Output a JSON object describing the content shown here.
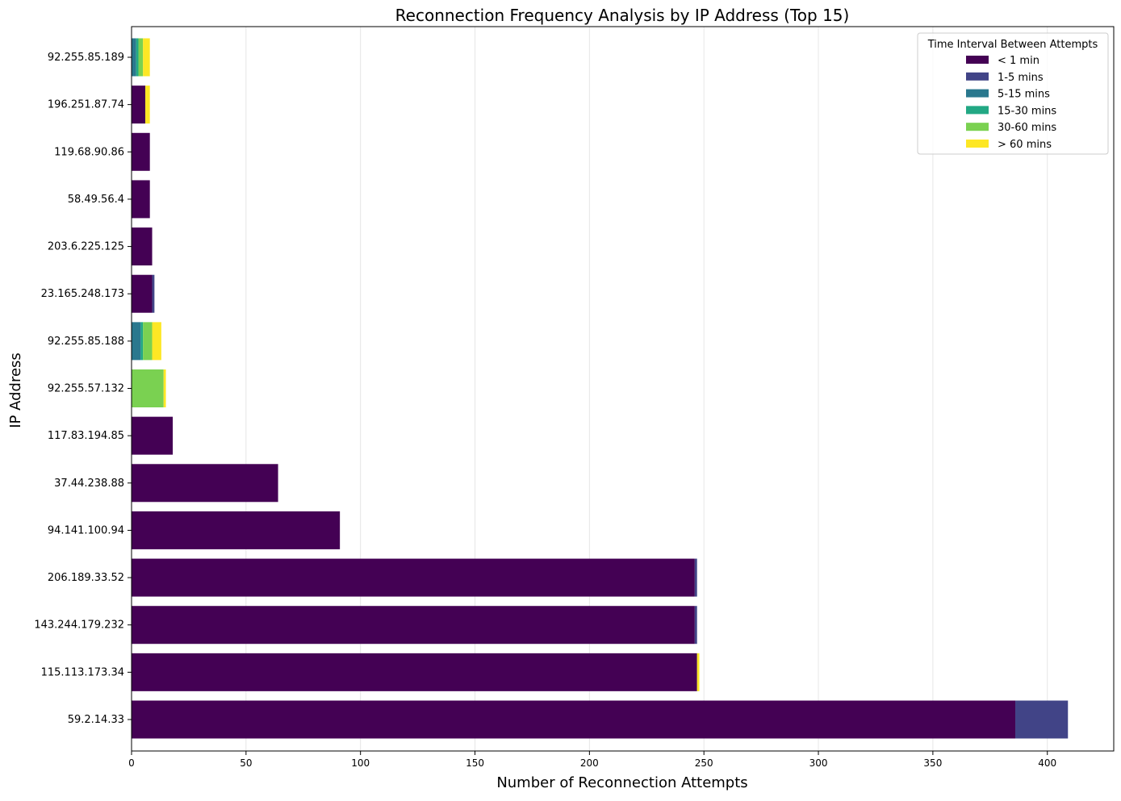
{
  "chart_data": {
    "type": "bar",
    "orientation": "horizontal",
    "stacked": true,
    "title": "Reconnection Frequency Analysis by IP Address (Top 15)",
    "xlabel": "Number of Reconnection Attempts",
    "ylabel": "IP Address",
    "xlim": [
      0,
      429
    ],
    "xticks": [
      0,
      50,
      100,
      150,
      200,
      250,
      300,
      350,
      400
    ],
    "grid": "vertical",
    "legend": {
      "title": "Time Interval Between Attempts",
      "position": "top-right"
    },
    "categories": [
      "59.2.14.33",
      "115.113.173.34",
      "143.244.179.232",
      "206.189.33.52",
      "94.141.100.94",
      "37.44.238.88",
      "117.83.194.85",
      "92.255.57.132",
      "92.255.85.188",
      "23.165.248.173",
      "203.6.225.125",
      "58.49.56.4",
      "119.68.90.86",
      "196.251.87.74",
      "92.255.85.189"
    ],
    "series": [
      {
        "name": "< 1 min",
        "color": "#440154",
        "values": [
          386,
          247,
          246,
          246,
          91,
          64,
          18,
          0,
          0,
          9,
          9,
          8,
          8,
          6,
          0
        ]
      },
      {
        "name": "1-5 mins",
        "color": "#414487",
        "values": [
          23,
          0,
          1,
          1,
          0,
          0,
          0,
          0,
          0,
          1,
          0,
          0,
          0,
          0,
          0
        ]
      },
      {
        "name": "5-15 mins",
        "color": "#2a788e",
        "values": [
          0,
          0,
          0,
          0,
          0,
          0,
          0,
          0,
          4,
          0,
          0,
          0,
          0,
          0,
          2
        ]
      },
      {
        "name": "15-30 mins",
        "color": "#22a884",
        "values": [
          0,
          0,
          0,
          0,
          0,
          0,
          0,
          0,
          1,
          0,
          0,
          0,
          0,
          0,
          1
        ]
      },
      {
        "name": "30-60 mins",
        "color": "#7ad151",
        "values": [
          0,
          0,
          0,
          0,
          0,
          0,
          0,
          14,
          4,
          0,
          0,
          0,
          0,
          0,
          2
        ]
      },
      {
        "name": "> 60 mins",
        "color": "#fde725",
        "values": [
          0,
          1,
          0,
          0,
          0,
          0,
          0,
          1,
          4,
          0,
          0,
          0,
          0,
          2,
          3
        ]
      }
    ]
  }
}
